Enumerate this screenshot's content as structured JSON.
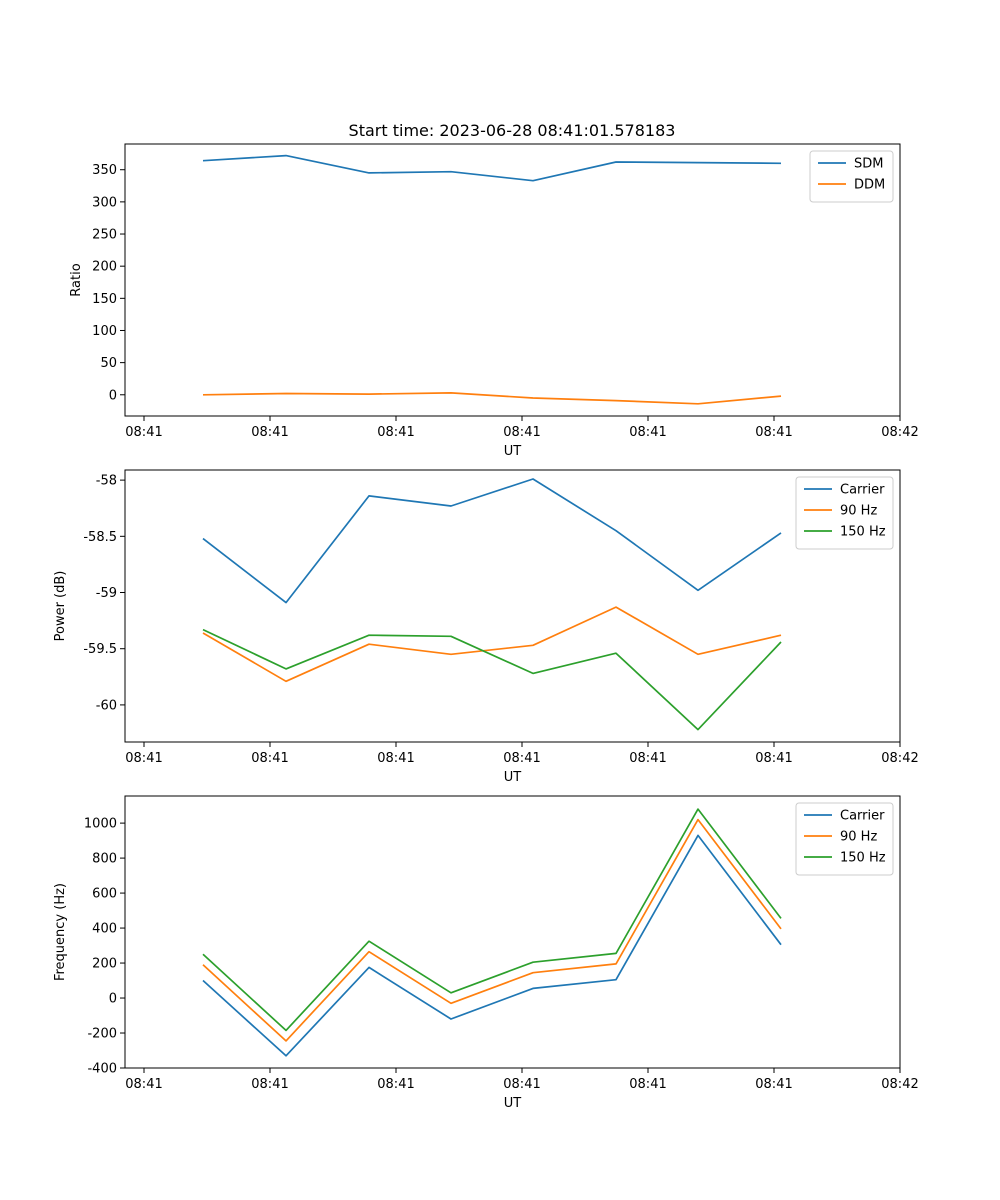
{
  "figure": {
    "title": "Start time: 2023-06-28 08:41:01.578183"
  },
  "chart_data": [
    {
      "type": "line",
      "title": "Start time: 2023-06-28 08:41:01.578183",
      "xlabel": "UT",
      "ylabel": "Ratio",
      "xticks": [
        "08:41",
        "08:41",
        "08:41",
        "08:41",
        "08:41",
        "08:41",
        "08:42"
      ],
      "ylim": [
        -33,
        390
      ],
      "yticks": [
        0,
        50,
        100,
        150,
        200,
        250,
        300,
        350
      ],
      "grid": false,
      "legend": "top-right",
      "series": [
        {
          "name": "SDM",
          "color": "#1f77b4",
          "values": [
            364,
            372,
            345,
            347,
            333,
            362,
            361,
            360
          ]
        },
        {
          "name": "DDM",
          "color": "#ff7f0e",
          "values": [
            0,
            2,
            1,
            3,
            -5,
            -9,
            -14,
            -2
          ]
        }
      ]
    },
    {
      "type": "line",
      "xlabel": "UT",
      "ylabel": "Power (dB)",
      "xticks": [
        "08:41",
        "08:41",
        "08:41",
        "08:41",
        "08:41",
        "08:41",
        "08:42"
      ],
      "ylim": [
        -60.33,
        -57.91
      ],
      "yticks": [
        -60.0,
        -59.5,
        -59.0,
        -58.5,
        -58.0
      ],
      "grid": false,
      "legend": "top-right",
      "series": [
        {
          "name": "Carrier",
          "color": "#1f77b4",
          "values": [
            -58.52,
            -59.09,
            -58.14,
            -58.23,
            -57.99,
            -58.45,
            -58.98,
            -58.47
          ]
        },
        {
          "name": "90 Hz",
          "color": "#ff7f0e",
          "values": [
            -59.36,
            -59.79,
            -59.46,
            -59.55,
            -59.47,
            -59.13,
            -59.55,
            -59.38
          ]
        },
        {
          "name": "150 Hz",
          "color": "#2ca02c",
          "values": [
            -59.33,
            -59.68,
            -59.38,
            -59.39,
            -59.72,
            -59.54,
            -60.22,
            -59.44
          ]
        }
      ]
    },
    {
      "type": "line",
      "xlabel": "UT",
      "ylabel": "Frequency (Hz)",
      "xticks": [
        "08:41",
        "08:41",
        "08:41",
        "08:41",
        "08:41",
        "08:41",
        "08:42"
      ],
      "ylim": [
        -400,
        1155
      ],
      "yticks": [
        -400,
        -200,
        0,
        200,
        400,
        600,
        800,
        1000
      ],
      "grid": false,
      "legend": "top-right",
      "series": [
        {
          "name": "Carrier",
          "color": "#1f77b4",
          "values": [
            100,
            -330,
            175,
            -120,
            55,
            105,
            930,
            305
          ]
        },
        {
          "name": "90 Hz",
          "color": "#ff7f0e",
          "values": [
            190,
            -245,
            265,
            -30,
            145,
            195,
            1020,
            395
          ]
        },
        {
          "name": "150 Hz",
          "color": "#2ca02c",
          "values": [
            250,
            -185,
            325,
            30,
            205,
            255,
            1080,
            455
          ]
        }
      ]
    }
  ]
}
